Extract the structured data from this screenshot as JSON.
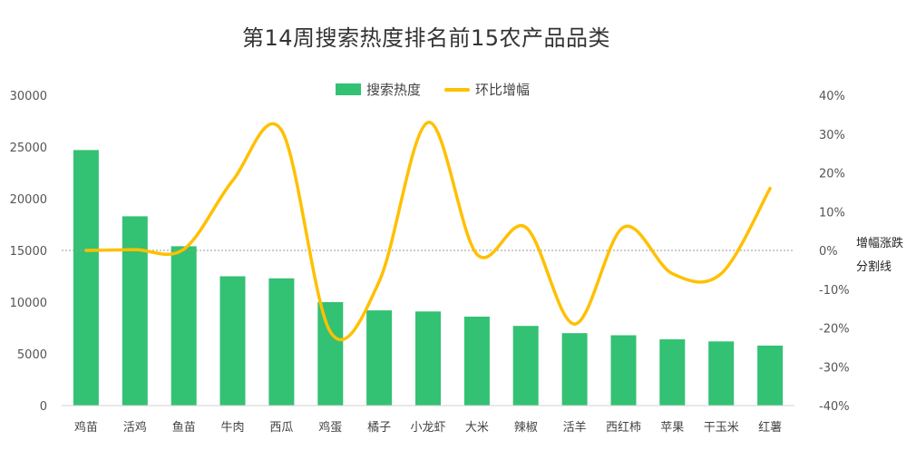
{
  "chart_data": {
    "type": "bar",
    "title": "第14周搜索热度排名前15农产品品类",
    "categories": [
      "鸡苗",
      "活鸡",
      "鱼苗",
      "牛肉",
      "西瓜",
      "鸡蛋",
      "橘子",
      "小龙虾",
      "大米",
      "辣椒",
      "活羊",
      "西红柿",
      "苹果",
      "干玉米",
      "红薯"
    ],
    "series": [
      {
        "name": "搜索热度",
        "type": "bar",
        "axis": "left",
        "color": "#33c173",
        "values": [
          24700,
          18300,
          15400,
          12500,
          12300,
          10000,
          9200,
          9100,
          8600,
          7700,
          7000,
          6800,
          6400,
          6200,
          5800
        ]
      },
      {
        "name": "环比增幅",
        "type": "line",
        "axis": "right",
        "color": "#ffc000",
        "smooth": true,
        "values": [
          0.0,
          0.2,
          0.3,
          18,
          31,
          -21,
          -8,
          33,
          -1,
          6,
          -19,
          6,
          -6,
          -6,
          16
        ]
      }
    ],
    "y_left": {
      "min": 0,
      "max": 30000,
      "ticks": [
        "0",
        "5000",
        "10000",
        "15000",
        "20000",
        "25000",
        "30000"
      ]
    },
    "y_right": {
      "min": -40,
      "max": 40,
      "ticks": [
        "-40%",
        "-30%",
        "-20%",
        "-10%",
        "0%",
        "10%",
        "20%",
        "30%",
        "40%"
      ]
    },
    "divider_label": [
      "增幅涨跌",
      "分割线"
    ],
    "legend_position": "top"
  }
}
